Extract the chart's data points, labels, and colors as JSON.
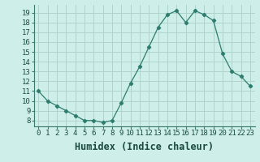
{
  "x": [
    0,
    1,
    2,
    3,
    4,
    5,
    6,
    7,
    8,
    9,
    10,
    11,
    12,
    13,
    14,
    15,
    16,
    17,
    18,
    19,
    20,
    21,
    22,
    23
  ],
  "y": [
    11.0,
    10.0,
    9.5,
    9.0,
    8.5,
    8.0,
    8.0,
    7.8,
    8.0,
    9.8,
    11.8,
    13.5,
    15.5,
    17.5,
    18.8,
    19.2,
    18.0,
    19.2,
    18.8,
    18.2,
    14.8,
    13.0,
    12.5,
    11.5
  ],
  "line_color": "#2e7d6e",
  "marker_color": "#2e7d6e",
  "bg_color": "#cdeee9",
  "grid_color": "#aed4cc",
  "xlabel": "Humidex (Indice chaleur)",
  "xlim": [
    -0.5,
    23.5
  ],
  "ylim": [
    7.4,
    19.8
  ],
  "yticks": [
    8,
    9,
    10,
    11,
    12,
    13,
    14,
    15,
    16,
    17,
    18,
    19
  ],
  "xticks": [
    0,
    1,
    2,
    3,
    4,
    5,
    6,
    7,
    8,
    9,
    10,
    11,
    12,
    13,
    14,
    15,
    16,
    17,
    18,
    19,
    20,
    21,
    22,
    23
  ],
  "tick_label_fontsize": 6.5,
  "xlabel_fontsize": 8.5,
  "outer_bg": "#cdeee9"
}
